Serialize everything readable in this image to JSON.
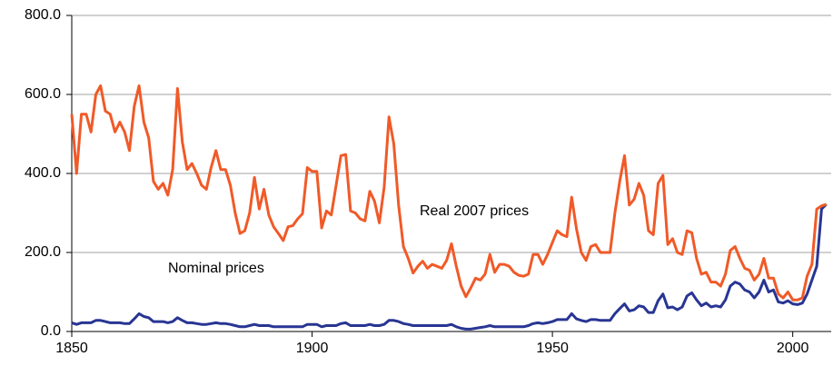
{
  "chart_data": {
    "type": "line",
    "x": [
      1850,
      1851,
      1852,
      1853,
      1854,
      1855,
      1856,
      1857,
      1858,
      1859,
      1860,
      1861,
      1862,
      1863,
      1864,
      1865,
      1866,
      1867,
      1868,
      1869,
      1870,
      1871,
      1872,
      1873,
      1874,
      1875,
      1876,
      1877,
      1878,
      1879,
      1880,
      1881,
      1882,
      1883,
      1884,
      1885,
      1886,
      1887,
      1888,
      1889,
      1890,
      1891,
      1892,
      1893,
      1894,
      1895,
      1896,
      1897,
      1898,
      1899,
      1900,
      1901,
      1902,
      1903,
      1904,
      1905,
      1906,
      1907,
      1908,
      1909,
      1910,
      1911,
      1912,
      1913,
      1914,
      1915,
      1916,
      1917,
      1918,
      1919,
      1920,
      1921,
      1922,
      1923,
      1924,
      1925,
      1926,
      1927,
      1928,
      1929,
      1930,
      1931,
      1932,
      1933,
      1934,
      1935,
      1936,
      1937,
      1938,
      1939,
      1940,
      1941,
      1942,
      1943,
      1944,
      1945,
      1946,
      1947,
      1948,
      1949,
      1950,
      1951,
      1952,
      1953,
      1954,
      1955,
      1956,
      1957,
      1958,
      1959,
      1960,
      1961,
      1962,
      1963,
      1964,
      1965,
      1966,
      1967,
      1968,
      1969,
      1970,
      1971,
      1972,
      1973,
      1974,
      1975,
      1976,
      1977,
      1978,
      1979,
      1980,
      1981,
      1982,
      1983,
      1984,
      1985,
      1986,
      1987,
      1988,
      1989,
      1990,
      1991,
      1992,
      1993,
      1994,
      1995,
      1996,
      1997,
      1998,
      1999,
      2000,
      2001,
      2002,
      2003,
      2004,
      2005,
      2006,
      2007
    ],
    "series": [
      {
        "name": "Real 2007 prices",
        "color": "#f05a28",
        "values": [
          550,
          400,
          550,
          550,
          505,
          600,
          622,
          558,
          550,
          505,
          530,
          505,
          458,
          570,
          622,
          530,
          490,
          380,
          360,
          375,
          345,
          410,
          615,
          480,
          410,
          425,
          400,
          370,
          360,
          415,
          458,
          410,
          410,
          370,
          300,
          248,
          255,
          300,
          390,
          310,
          360,
          295,
          265,
          248,
          230,
          265,
          268,
          285,
          298,
          415,
          405,
          405,
          262,
          305,
          295,
          370,
          445,
          448,
          305,
          300,
          285,
          280,
          355,
          330,
          275,
          365,
          543,
          475,
          320,
          215,
          185,
          148,
          165,
          178,
          160,
          170,
          165,
          160,
          180,
          222,
          165,
          115,
          88,
          110,
          135,
          130,
          145,
          195,
          150,
          170,
          170,
          165,
          150,
          142,
          140,
          145,
          195,
          195,
          170,
          195,
          225,
          255,
          245,
          240,
          340,
          260,
          200,
          180,
          215,
          220,
          200,
          200,
          200,
          300,
          380,
          445,
          320,
          335,
          375,
          345,
          255,
          245,
          375,
          395,
          220,
          235,
          200,
          195,
          255,
          250,
          185,
          145,
          150,
          125,
          125,
          115,
          145,
          205,
          215,
          185,
          160,
          155,
          130,
          145,
          185,
          135,
          135,
          95,
          85,
          100,
          80,
          80,
          85,
          140,
          170,
          310,
          318,
          322
        ]
      },
      {
        "name": "Nominal prices",
        "color": "#283593",
        "values": [
          22,
          18,
          22,
          22,
          22,
          28,
          28,
          25,
          22,
          22,
          22,
          20,
          20,
          32,
          45,
          38,
          35,
          25,
          25,
          25,
          22,
          25,
          35,
          28,
          22,
          22,
          20,
          18,
          18,
          20,
          22,
          20,
          20,
          18,
          15,
          12,
          12,
          15,
          18,
          15,
          15,
          15,
          12,
          12,
          12,
          12,
          12,
          12,
          12,
          18,
          18,
          18,
          12,
          15,
          15,
          15,
          20,
          22,
          15,
          15,
          15,
          15,
          18,
          15,
          15,
          18,
          28,
          28,
          25,
          20,
          18,
          15,
          15,
          15,
          15,
          15,
          15,
          15,
          15,
          18,
          12,
          8,
          6,
          6,
          8,
          10,
          12,
          15,
          12,
          12,
          12,
          12,
          12,
          12,
          12,
          15,
          20,
          22,
          20,
          22,
          25,
          30,
          30,
          30,
          45,
          32,
          28,
          25,
          30,
          30,
          28,
          28,
          28,
          45,
          58,
          70,
          52,
          55,
          65,
          62,
          48,
          48,
          78,
          95,
          60,
          62,
          55,
          62,
          90,
          98,
          80,
          65,
          72,
          62,
          65,
          62,
          80,
          115,
          125,
          120,
          105,
          100,
          85,
          100,
          130,
          100,
          105,
          75,
          72,
          78,
          70,
          68,
          72,
          95,
          130,
          165,
          310,
          322
        ]
      }
    ],
    "xlim": [
      1850,
      2008
    ],
    "xticks": [
      1850,
      1900,
      1950,
      2000
    ],
    "ylim": [
      0,
      800
    ],
    "yticks": [
      {
        "value": 0,
        "label": "0.0"
      },
      {
        "value": 200,
        "label": "200.0"
      },
      {
        "value": 400,
        "label": "400.0"
      },
      {
        "value": 600,
        "label": "600.0"
      },
      {
        "value": 800,
        "label": "800.0"
      }
    ],
    "grid": true
  }
}
